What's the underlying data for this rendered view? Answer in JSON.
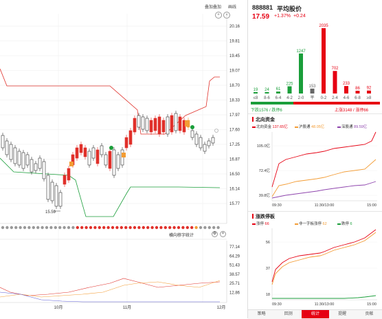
{
  "toolbar": {
    "overlay_label": "叠加叠加",
    "indicator_label": "画线",
    "setting_label": "设置"
  },
  "kline_axis": {
    "ticks": [
      "20.16",
      "19.81",
      "19.45",
      "19.07",
      "18.70",
      "18.33",
      "17.97",
      "17.60",
      "17.25",
      "16.87",
      "16.50",
      "16.14",
      "15.77"
    ]
  },
  "kline": {
    "low_label": "15.59",
    "high_marker": "B",
    "sell_marker": "S"
  },
  "indicator_title": "横向移字统计",
  "indicator_axis": {
    "ticks": [
      "77.14",
      "64.29",
      "51.43",
      "38.57",
      "25.71",
      "12.86"
    ]
  },
  "months": [
    "10月",
    "11月",
    "12月"
  ],
  "index": {
    "code": "888881",
    "name": "平均股价",
    "price": "17.59",
    "change_pct": "+1.37%",
    "change": "+0.24"
  },
  "chart_data": [
    {
      "type": "bar",
      "title": "",
      "categories": [
        "≤8",
        "8-6",
        "6-4",
        "4-2",
        "2-0",
        "平",
        "0-2",
        "2-4",
        "4-6",
        "6-8",
        "≥8"
      ],
      "values": [
        19,
        24,
        61,
        225,
        1247,
        153,
        2035,
        702,
        233,
        86,
        92
      ],
      "colors": [
        "#1a9e3a",
        "#1a9e3a",
        "#1a9e3a",
        "#1a9e3a",
        "#1a9e3a",
        "#666666",
        "#e60012",
        "#e60012",
        "#e60012",
        "#e60012",
        "#e60012"
      ]
    },
    {
      "type": "line",
      "title": "北向资金",
      "series": [
        {
          "name": "北向资金",
          "value_label": "137.65亿",
          "color": "#e60012"
        },
        {
          "name": "沪股通",
          "value_label": "48.05亿",
          "color": "#f39c34"
        },
        {
          "name": "深股通",
          "value_label": "89.59亿",
          "color": "#8e44ad"
        }
      ],
      "y_ticks": [
        "105.0亿",
        "72.4亿",
        "39.8亿"
      ],
      "x_ticks": [
        "09:30",
        "11:30/13:00",
        "15:00"
      ]
    },
    {
      "type": "line",
      "title": "涨跌停板",
      "series": [
        {
          "name": "涨停",
          "value_label": "66",
          "color": "#e60012"
        },
        {
          "name": "非一字板涨停",
          "value_label": "62",
          "color": "#f39c34"
        },
        {
          "name": "跌停",
          "value_label": "6",
          "color": "#1a9e3a"
        }
      ],
      "y_ticks": [
        "56",
        "37",
        "18"
      ],
      "x_ticks": [
        "09:30",
        "11:30/13:00",
        "15:00"
      ]
    }
  ],
  "breadth": {
    "down_label": "下跌1576 / 跌停6",
    "up_label": "上涨3148 / 涨停66",
    "down_ratio": 0.33
  },
  "tabs": [
    "策略",
    "回测",
    "统计",
    "提醒",
    "贡献"
  ],
  "active_tab": 2
}
